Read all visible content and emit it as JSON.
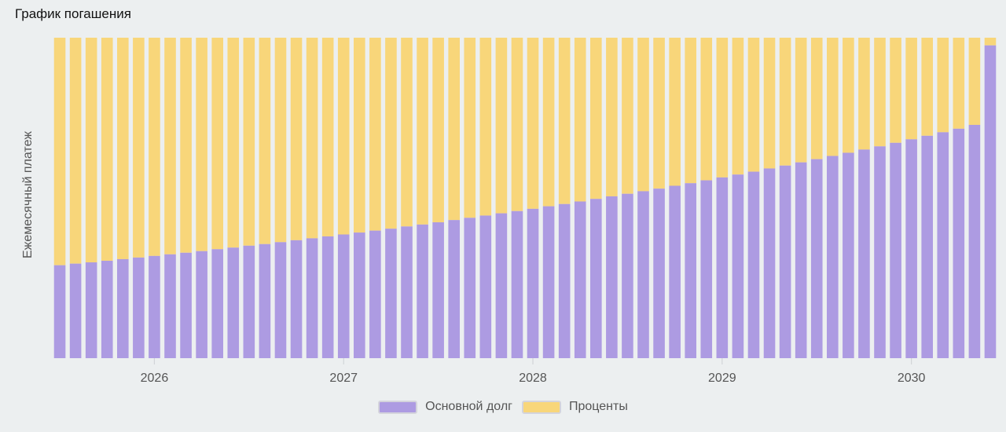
{
  "header": {
    "title": "График погашения"
  },
  "chart_data": {
    "type": "bar",
    "stacked": true,
    "title": "График погашения",
    "xlabel": "",
    "ylabel": "Ежемесячный платеж",
    "ylim": [
      0,
      1
    ],
    "grid": true,
    "legend_position": "bottom-center",
    "x_ticks": [
      "2026",
      "2027",
      "2028",
      "2029",
      "2030"
    ],
    "period_start": "2025-07",
    "months": 60,
    "series": [
      {
        "name": "Основной долг",
        "color": "#ad9be2",
        "values": [
          0.29,
          0.295,
          0.299,
          0.304,
          0.309,
          0.314,
          0.319,
          0.324,
          0.329,
          0.334,
          0.34,
          0.345,
          0.351,
          0.356,
          0.362,
          0.368,
          0.374,
          0.38,
          0.386,
          0.392,
          0.398,
          0.404,
          0.411,
          0.417,
          0.424,
          0.431,
          0.438,
          0.445,
          0.452,
          0.459,
          0.466,
          0.474,
          0.481,
          0.489,
          0.497,
          0.505,
          0.513,
          0.521,
          0.529,
          0.538,
          0.546,
          0.555,
          0.564,
          0.573,
          0.582,
          0.592,
          0.601,
          0.611,
          0.621,
          0.631,
          0.641,
          0.651,
          0.661,
          0.672,
          0.683,
          0.694,
          0.705,
          0.716,
          0.728,
          0.976
        ]
      },
      {
        "name": "Проценты",
        "color": "#f8d67a",
        "values": [
          0.71,
          0.705,
          0.701,
          0.696,
          0.691,
          0.686,
          0.681,
          0.676,
          0.671,
          0.666,
          0.66,
          0.655,
          0.649,
          0.644,
          0.638,
          0.632,
          0.626,
          0.62,
          0.614,
          0.608,
          0.602,
          0.596,
          0.589,
          0.583,
          0.576,
          0.569,
          0.562,
          0.555,
          0.548,
          0.541,
          0.534,
          0.526,
          0.519,
          0.511,
          0.503,
          0.495,
          0.487,
          0.479,
          0.471,
          0.462,
          0.454,
          0.445,
          0.436,
          0.427,
          0.418,
          0.408,
          0.399,
          0.389,
          0.379,
          0.369,
          0.359,
          0.349,
          0.339,
          0.328,
          0.317,
          0.306,
          0.295,
          0.284,
          0.272,
          0.024
        ]
      }
    ]
  },
  "legend": {
    "principal_label": "Основной долг",
    "interest_label": "Проценты"
  }
}
